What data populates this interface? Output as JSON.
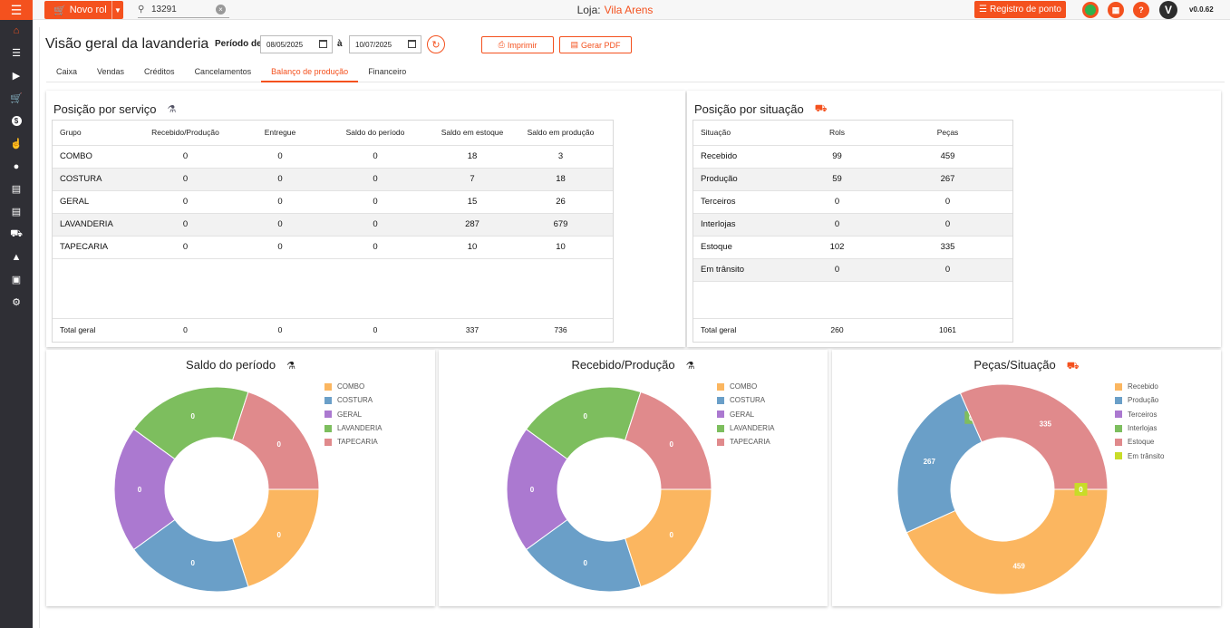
{
  "topbar": {
    "novo_label": "Novo rol",
    "search_value": "13291",
    "loja_label": "Loja:",
    "loja_name": "Vila Arens",
    "registro_label": "Registro de ponto",
    "avatar_letter": "V",
    "version": "v0.0.62"
  },
  "colors": {
    "accent": "#f4511e",
    "sidebar": "#2f2f35"
  },
  "sidebar": {
    "items": [
      "home-icon",
      "checklist-icon",
      "tag-icon",
      "cart-icon",
      "dollar-icon",
      "touch-icon",
      "user-icon",
      "document-icon",
      "document-2-icon",
      "truck-icon",
      "hanger-icon",
      "box-icon",
      "gear-icon"
    ]
  },
  "header": {
    "title": "Visão geral da lavanderia",
    "periodo_label": "Período de",
    "date_from": "08/05/2025",
    "date_sep": "à",
    "date_to": "10/07/2025",
    "print_label": "Imprimir",
    "pdf_label": "Gerar PDF"
  },
  "tabs": [
    "Caixa",
    "Vendas",
    "Créditos",
    "Cancelamentos",
    "Balanço de produção",
    "Financeiro"
  ],
  "active_tab": "Balanço de produção",
  "servico": {
    "title": "Posição por serviço",
    "columns": [
      "Grupo",
      "Recebido/Produção",
      "Entregue",
      "Saldo do período",
      "Saldo em estoque",
      "Saldo em produção"
    ],
    "rows": [
      [
        "COMBO",
        "0",
        "0",
        "0",
        "18",
        "3"
      ],
      [
        "COSTURA",
        "0",
        "0",
        "0",
        "7",
        "18"
      ],
      [
        "GERAL",
        "0",
        "0",
        "0",
        "15",
        "26"
      ],
      [
        "LAVANDERIA",
        "0",
        "0",
        "0",
        "287",
        "679"
      ],
      [
        "TAPECARIA",
        "0",
        "0",
        "0",
        "10",
        "10"
      ]
    ],
    "total": [
      "Total geral",
      "0",
      "0",
      "0",
      "337",
      "736"
    ]
  },
  "situacao": {
    "title": "Posição por situação",
    "columns": [
      "Situação",
      "Rols",
      "Peças"
    ],
    "rows": [
      [
        "Recebido",
        "99",
        "459"
      ],
      [
        "Produção",
        "59",
        "267"
      ],
      [
        "Terceiros",
        "0",
        "0"
      ],
      [
        "Interlojas",
        "0",
        "0"
      ],
      [
        "Estoque",
        "102",
        "335"
      ],
      [
        "Em trânsito",
        "0",
        "0"
      ]
    ],
    "total": [
      "Total geral",
      "260",
      "1061"
    ]
  },
  "chart_data": [
    {
      "type": "pie",
      "title": "Saldo do período",
      "categories": [
        "COMBO",
        "COSTURA",
        "GERAL",
        "LAVANDERIA",
        "TAPECARIA"
      ],
      "values": [
        0,
        0,
        0,
        0,
        0
      ],
      "colors": [
        "#fbb660",
        "#6a9fc8",
        "#ab79d0",
        "#7dbe5e",
        "#e08a8c"
      ],
      "legend": "top-right"
    },
    {
      "type": "pie",
      "title": "Recebido/Produção",
      "categories": [
        "COMBO",
        "COSTURA",
        "GERAL",
        "LAVANDERIA",
        "TAPECARIA"
      ],
      "values": [
        0,
        0,
        0,
        0,
        0
      ],
      "colors": [
        "#fbb660",
        "#6a9fc8",
        "#ab79d0",
        "#7dbe5e",
        "#e08a8c"
      ],
      "legend": "top-right"
    },
    {
      "type": "pie",
      "title": "Peças/Situação",
      "categories": [
        "Recebido",
        "Produção",
        "Terceiros",
        "Interlojas",
        "Estoque",
        "Em trânsito"
      ],
      "values": [
        459,
        267,
        0,
        0,
        335,
        0
      ],
      "colors": [
        "#fbb660",
        "#6a9fc8",
        "#ab79d0",
        "#7dbe5e",
        "#e08a8c",
        "#c8dc28"
      ],
      "legend": "top-right"
    }
  ]
}
